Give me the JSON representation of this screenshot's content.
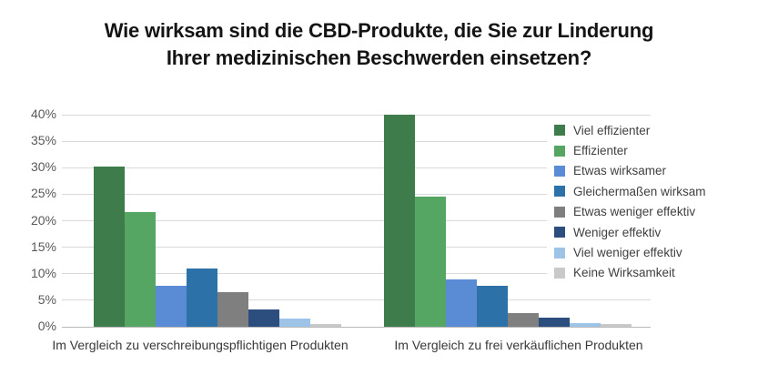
{
  "title": {
    "line1": "Wie wirksam sind die CBD-Produkte, die Sie zur Linderung",
    "line2": "Ihrer medizinischen Beschwerden einsetzen?"
  },
  "chart_data": {
    "type": "bar",
    "title": "Wie wirksam sind die CBD-Produkte, die Sie zur Linderung Ihrer medizinischen Beschwerden einsetzen?",
    "categories": [
      "Im Vergleich zu verschreibungspflichtigen Produkten",
      "Im Vergleich zu frei verkäuflichen Produkten"
    ],
    "series": [
      {
        "name": "Viel effizienter",
        "color": "#3E7D4B",
        "values": [
          30.2,
          40.0
        ]
      },
      {
        "name": "Effizienter",
        "color": "#56A663",
        "values": [
          21.6,
          24.5
        ]
      },
      {
        "name": "Etwas wirksamer",
        "color": "#5A8BD5",
        "values": [
          7.8,
          8.9
        ]
      },
      {
        "name": "Gleichermaßen wirksam",
        "color": "#2D71A9",
        "values": [
          11.0,
          7.7
        ]
      },
      {
        "name": "Etwas weniger effektiv",
        "color": "#7F7F7F",
        "values": [
          6.5,
          2.5
        ]
      },
      {
        "name": "Weniger effektiv",
        "color": "#2B4E7E",
        "values": [
          3.2,
          1.8
        ]
      },
      {
        "name": "Viel weniger effektiv",
        "color": "#9DC3E6",
        "values": [
          1.5,
          0.7
        ]
      },
      {
        "name": "Keine Wirksamkeit",
        "color": "#C9C9C9",
        "values": [
          0.5,
          0.6
        ]
      }
    ],
    "xlabel": "",
    "ylabel": "",
    "ylim": [
      0,
      40
    ],
    "yticks": [
      "40%",
      "35%",
      "30%",
      "25%",
      "20%",
      "15%",
      "10%",
      "5%",
      "0%"
    ],
    "grid": true,
    "legend_position": "right",
    "colors": {
      "background": "#FFFFFF",
      "gridline": "#D9D9D9",
      "axis_line": "#B9B9B9",
      "tick_label": "#595959",
      "category_label": "#383838",
      "legend_text": "#3F3F3F",
      "title_text": "#141414"
    }
  }
}
